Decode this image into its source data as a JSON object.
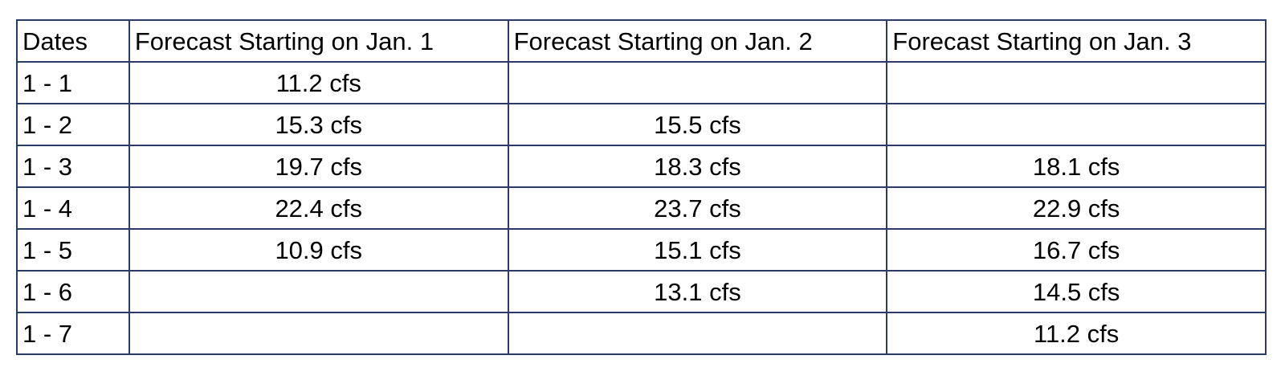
{
  "table": {
    "headers": [
      "Dates",
      "Forecast Starting on Jan. 1",
      "Forecast Starting on Jan. 2",
      "Forecast Starting on Jan. 3"
    ],
    "rows": [
      [
        "1 - 1",
        "11.2 cfs",
        "",
        ""
      ],
      [
        "1 - 2",
        "15.3 cfs",
        "15.5 cfs",
        ""
      ],
      [
        "1 - 3",
        "19.7 cfs",
        "18.3 cfs",
        "18.1 cfs"
      ],
      [
        "1 - 4",
        "22.4 cfs",
        "23.7 cfs",
        "22.9 cfs"
      ],
      [
        "1 - 5",
        "10.9 cfs",
        "15.1 cfs",
        "16.7 cfs"
      ],
      [
        "1 - 6",
        "",
        "13.1 cfs",
        "14.5 cfs"
      ],
      [
        "1 - 7",
        "",
        "",
        "11.2 cfs"
      ]
    ]
  },
  "colors": {
    "border": "#2b3a67",
    "text": "#000000",
    "background": "#ffffff"
  }
}
